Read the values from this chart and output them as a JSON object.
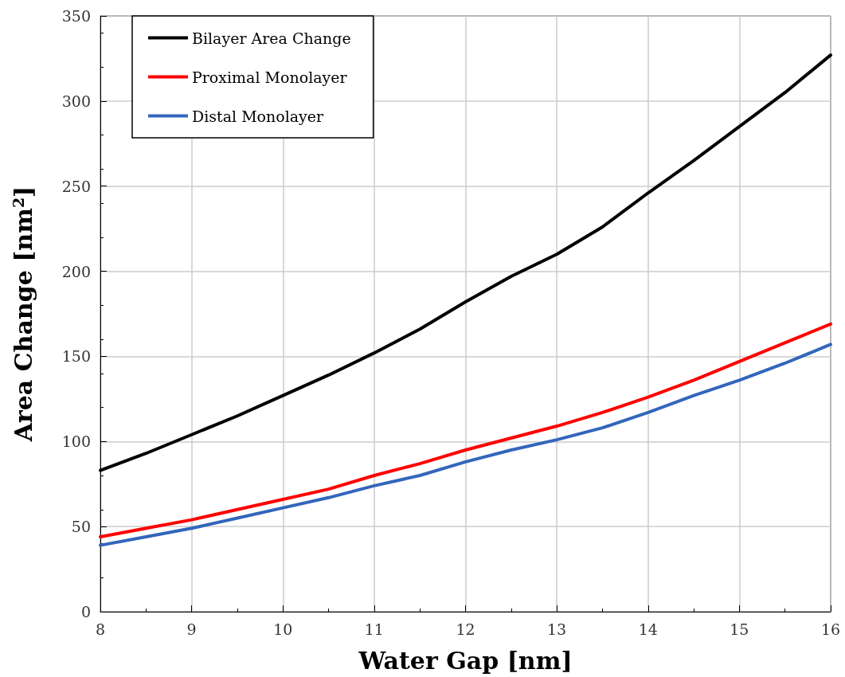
{
  "chart_data": {
    "type": "line",
    "xlabel": "Water Gap [nm]",
    "ylabel": "Area Change [nm$^{2}$]",
    "x": [
      8,
      8.5,
      9,
      9.5,
      10,
      10.5,
      11,
      11.5,
      12,
      12.5,
      13,
      13.5,
      14,
      14.5,
      15,
      15.5,
      16
    ],
    "series": [
      {
        "name": "Bilayer Area Change",
        "color": "#000000",
        "values": [
          83,
          93,
          104,
          115,
          127,
          139,
          152,
          166,
          182,
          197,
          210,
          226,
          246,
          265,
          285,
          305,
          327
        ]
      },
      {
        "name": "Proximal Monolayer",
        "color": "#ff0000",
        "values": [
          44,
          49,
          54,
          60,
          66,
          72,
          80,
          87,
          95,
          102,
          109,
          117,
          126,
          136,
          147,
          158,
          169
        ]
      },
      {
        "name": "Distal Monolayer",
        "color": "#3366bb",
        "values": [
          39,
          44,
          49,
          55,
          61,
          67,
          74,
          80,
          88,
          95,
          101,
          108,
          117,
          127,
          136,
          146,
          157
        ]
      }
    ],
    "xlim": [
      8,
      16
    ],
    "xticks": [
      8,
      9,
      10,
      11,
      12,
      13,
      14,
      15,
      16
    ],
    "ylim": [
      0,
      350
    ],
    "yticks": [
      0,
      50,
      100,
      150,
      200,
      250,
      300,
      350
    ],
    "grid": true,
    "legend": "top left",
    "marker": "none",
    "line_style": "solid"
  }
}
